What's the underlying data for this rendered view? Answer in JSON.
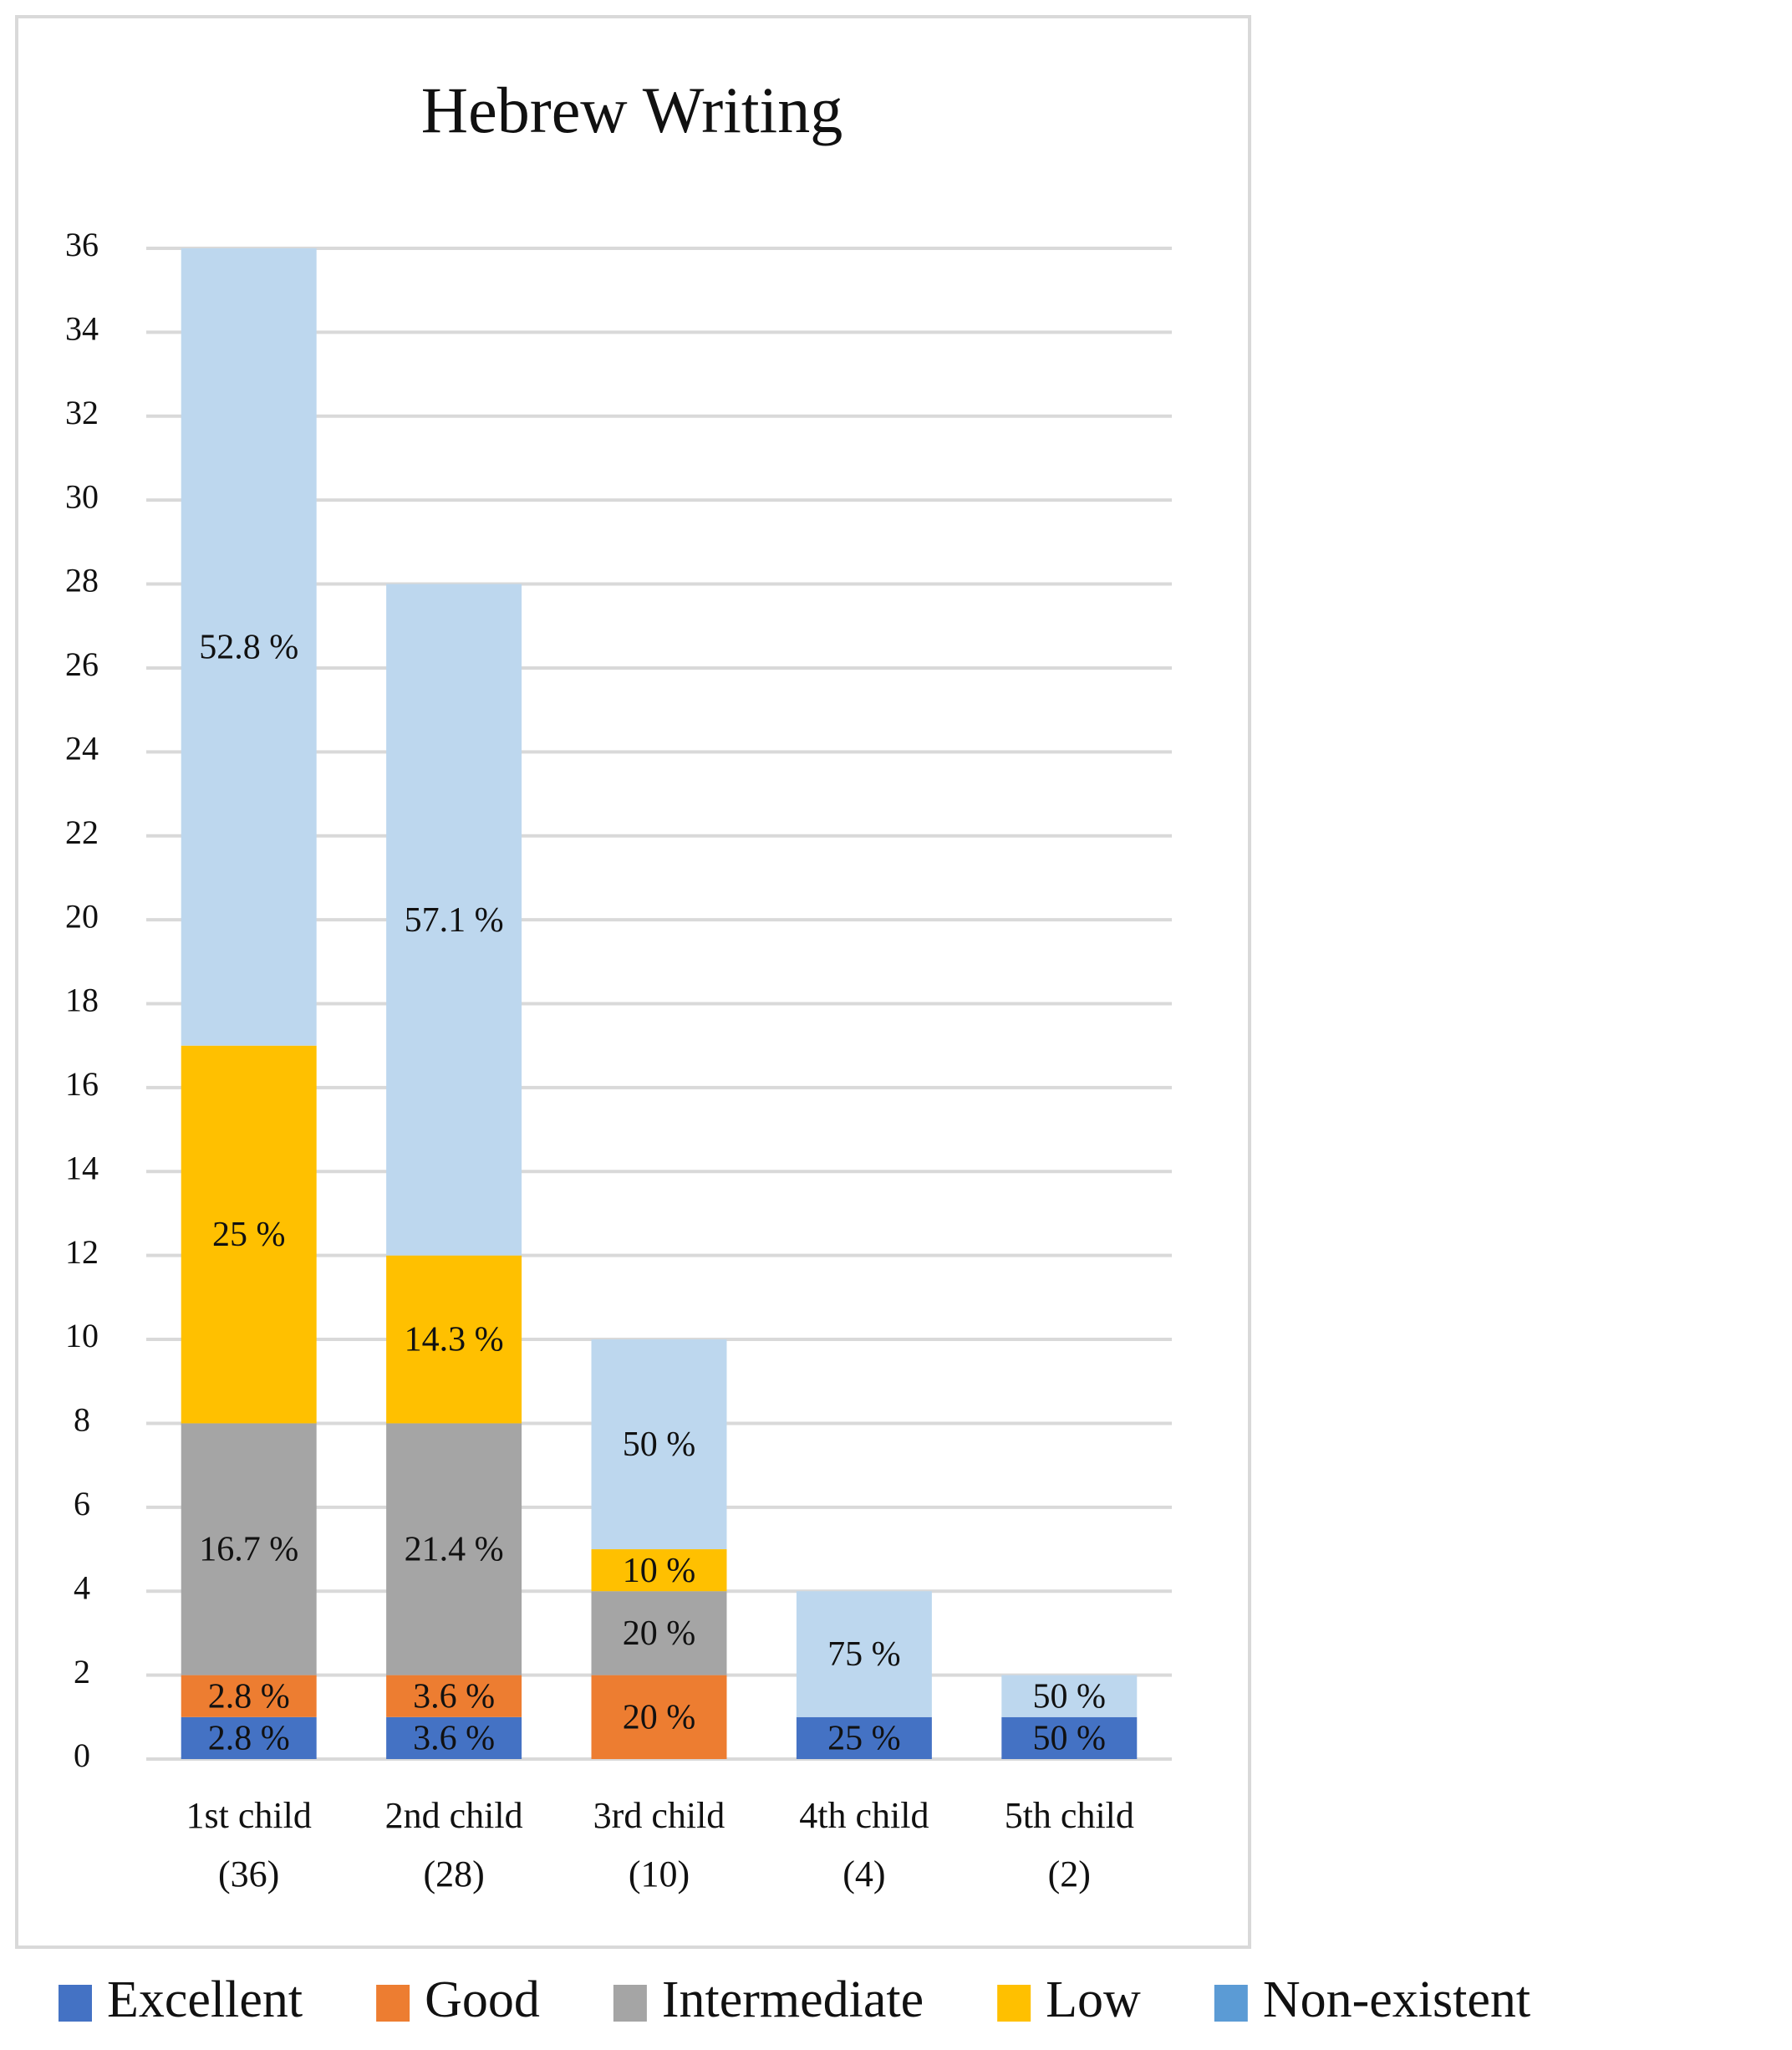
{
  "chart_data": {
    "type": "stacked-bar",
    "title": "Hebrew Writing",
    "categories": [
      [
        "1st child",
        "(36)"
      ],
      [
        "2nd child",
        "(28)"
      ],
      [
        "3rd child",
        "(10)"
      ],
      [
        "4th child",
        "(4)"
      ],
      [
        "5th child",
        "(2)"
      ]
    ],
    "series": [
      {
        "name": "Excellent",
        "color": "#4472c4",
        "legend_color": "#4472c4",
        "values": [
          1,
          1,
          0,
          1,
          1
        ],
        "data_labels": [
          "2.8 %",
          "3.6 %",
          null,
          "25 %",
          "50 %"
        ]
      },
      {
        "name": "Good",
        "color": "#ed7d31",
        "legend_color": "#ed7d31",
        "values": [
          1,
          1,
          2,
          0,
          0
        ],
        "data_labels": [
          "2.8 %",
          "3.6 %",
          "20 %",
          null,
          null
        ]
      },
      {
        "name": "Intermediate",
        "color": "#a5a5a5",
        "legend_color": "#a5a5a5",
        "values": [
          6,
          6,
          2,
          0,
          0
        ],
        "data_labels": [
          "16.7 %",
          "21.4 %",
          "20 %",
          null,
          null
        ]
      },
      {
        "name": "Low",
        "color": "#ffc000",
        "legend_color": "#ffc000",
        "values": [
          9,
          4,
          1,
          0,
          0
        ],
        "data_labels": [
          "25 %",
          "14.3 %",
          "10 %",
          null,
          null
        ]
      },
      {
        "name": "Non-existent",
        "color": "#bdd7ee",
        "legend_color": "#5b9bd5",
        "values": [
          19,
          16,
          5,
          3,
          1
        ],
        "data_labels": [
          "52.8 %",
          "57.1 %",
          "50 %",
          "75 %",
          "50 %"
        ]
      }
    ],
    "ylim": [
      0,
      36
    ],
    "yticks": [
      0,
      2,
      4,
      6,
      8,
      10,
      12,
      14,
      16,
      18,
      20,
      22,
      24,
      26,
      28,
      30,
      32,
      34,
      36
    ],
    "grid": true,
    "legend": "bottom"
  }
}
